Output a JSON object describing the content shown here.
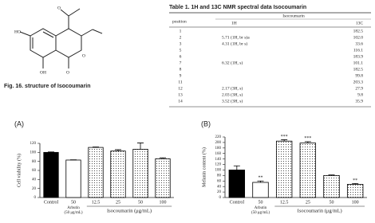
{
  "structure": {
    "atoms": [
      "HO",
      "OH",
      "O",
      "O",
      "O"
    ],
    "caption": "Fig. 16. structure of Isocoumarin"
  },
  "table": {
    "title": "Table 1. 1H and 13C NMR spectral data Isocoumarin",
    "header": [
      "position",
      "Isocoumarin",
      "1H",
      "13C"
    ],
    "rows": [
      [
        "1",
        null,
        "182.5"
      ],
      [
        "2",
        "5.71 (1H, br s)a",
        "102.0"
      ],
      [
        "3",
        "4.31 (1H, br s)",
        "33.6"
      ],
      [
        "5",
        null,
        "116.1"
      ],
      [
        "6",
        null,
        "183.9"
      ],
      [
        "7",
        "6.32 (1H, s)",
        "101.1"
      ],
      [
        "8",
        null,
        "182.5"
      ],
      [
        "9",
        null,
        "99.8"
      ],
      [
        "11",
        null,
        "203.3"
      ],
      [
        "12",
        "2.17 (3H, s)",
        "27.9"
      ],
      [
        "13",
        "2.03 (3H, s)",
        "9.8"
      ],
      [
        "14",
        "3.52 (3H, s)",
        "35.9"
      ]
    ]
  },
  "chart_data": [
    {
      "type": "bar",
      "title": "(A)",
      "y_label": "Cell viability (%)",
      "categories": [
        "Control",
        "50",
        "12.5",
        "25",
        "50",
        "100"
      ],
      "groups": [
        "Arbutin",
        "(50 μg/mL)",
        "Isocoumarin (μg/mL)"
      ],
      "values": [
        100,
        83,
        111,
        103,
        107,
        86
      ],
      "errors": [
        1,
        0.5,
        1,
        3,
        14,
        2
      ],
      "bar_styles": [
        "solid",
        "open",
        "dotted",
        "dotted",
        "dotted",
        "dotted"
      ],
      "color": "#000000",
      "ylim": [
        0,
        120
      ],
      "yticks": [
        0,
        20,
        40,
        60,
        80,
        100,
        120
      ]
    },
    {
      "type": "bar",
      "title": "(B)",
      "y_label": "Melanin content (%)",
      "categories": [
        "Control",
        "50",
        "12.5",
        "25",
        "50",
        "100"
      ],
      "groups": [
        "Arbutin",
        "(50 μg/mL)",
        "Isocoumarin (μg/mL)"
      ],
      "values": [
        100,
        55,
        205,
        198,
        80,
        48
      ],
      "errors": [
        15,
        5,
        5,
        5,
        2,
        3
      ],
      "significance": [
        null,
        "**",
        "***",
        "***",
        null,
        "**"
      ],
      "bar_styles": [
        "solid",
        "open",
        "dotted",
        "dotted",
        "dotted",
        "dotted"
      ],
      "color": "#000000",
      "ylim": [
        0,
        220
      ],
      "yticks": [
        0,
        20,
        40,
        60,
        80,
        100,
        120,
        140,
        160,
        180,
        200,
        220
      ]
    }
  ]
}
